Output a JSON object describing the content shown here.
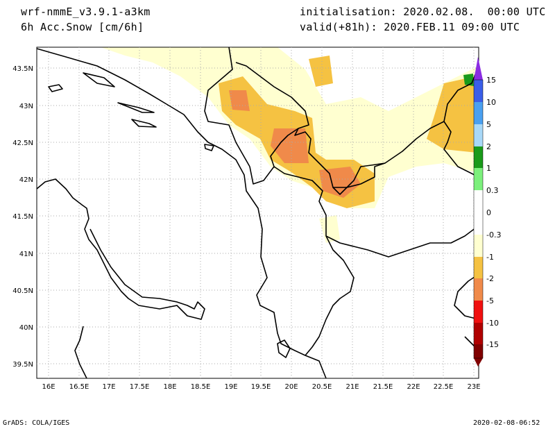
{
  "header": {
    "model": "wrf-nmmE_v3.9.1-a3km",
    "field": "6h Acc.Snow [cm/6h]",
    "init": "initialisation: 2020.02.08.  00:00 UTC",
    "valid": "valid(+81h): 2020.FEB.11 09:00 UTC"
  },
  "footer": {
    "left": "GrADS: COLA/IGES",
    "right": "2020-02-08-06:52"
  },
  "map": {
    "lat_labels": [
      "43.5N",
      "43N",
      "42.5N",
      "42N",
      "41.5N",
      "41N",
      "40.5N",
      "40N",
      "39.5N"
    ],
    "lon_labels": [
      "16E",
      "16.5E",
      "17E",
      "17.5E",
      "18E",
      "18.5E",
      "19E",
      "19.5E",
      "20E",
      "20.5E",
      "21E",
      "21.5E",
      "22E",
      "22.5E",
      "23E"
    ],
    "lat_range": [
      39.35,
      43.8
    ],
    "lon_range": [
      15.8,
      23.1
    ]
  },
  "legend": {
    "labels": [
      "15",
      "10",
      "5",
      "2",
      "1",
      "0.3",
      "0",
      "-0.3",
      "-1",
      "-2",
      "-5",
      "-10",
      "-15"
    ],
    "colors": {
      "purple": "#8a2be2",
      "blue": "#3a5ee8",
      "mid_blue": "#4aa0f0",
      "light_blue": "#a8d8f8",
      "dark_green": "#1a9a1a",
      "light_green": "#7cf07c",
      "pale_yellow": "#ffffd0",
      "yellow_orange": "#f5c242",
      "orange": "#f08a4a",
      "red": "#f01010",
      "dark_red": "#b00000",
      "deep_red": "#800000"
    }
  }
}
